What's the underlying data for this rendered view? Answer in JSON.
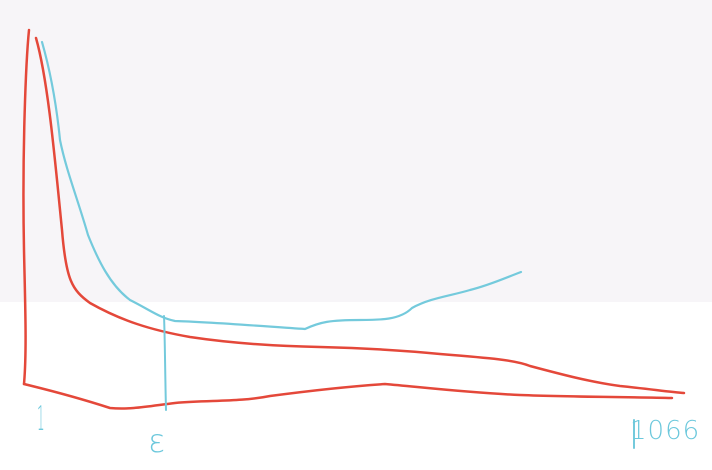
{
  "labels": {
    "left_tick": "1",
    "epsilon_tick": "ε",
    "right_tick": "1066"
  },
  "colors": {
    "red_curve": "#e4483a",
    "cyan_curve": "#74cadc",
    "top_band": "#f7f5f8",
    "background": "#ffffff"
  }
}
